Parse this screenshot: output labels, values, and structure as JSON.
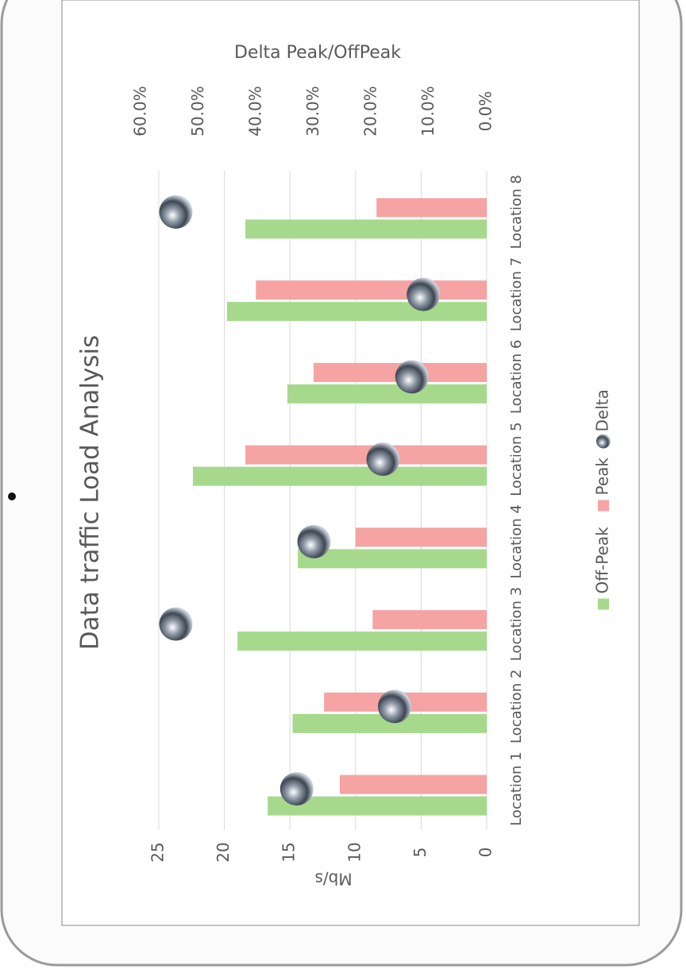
{
  "chart_data": {
    "type": "bar",
    "title": "Data traffic Load Analysis",
    "y_label": "Mb/s",
    "y2_label": "Delta Peak/OffPeak",
    "categories": [
      "Location 1",
      "Location 2",
      "Location 3",
      "Location 4",
      "Location 5",
      "Location 6",
      "Location 7",
      "Location 8"
    ],
    "series": [
      {
        "name": "Off-Peak",
        "color": "#a6d98c",
        "values": [
          16.7,
          14.8,
          19,
          14.4,
          22.4,
          15.2,
          19.8,
          18.4
        ]
      },
      {
        "name": "Peak",
        "color": "#f5a3a3",
        "values": [
          11.2,
          12.4,
          8.7,
          10,
          18.4,
          13.2,
          17.6,
          8.4
        ]
      },
      {
        "name": "Delta",
        "type": "scatter",
        "axis": "y2",
        "color": "#6d7a88",
        "values": [
          33,
          16,
          54,
          30,
          18,
          13,
          11,
          54
        ]
      }
    ],
    "ylim": [
      0,
      25
    ],
    "yticks": [
      0,
      5,
      10,
      15,
      20,
      25
    ],
    "y2lim": [
      0,
      60
    ],
    "y2ticks": [
      {
        "value": 0,
        "label": "0.0%"
      },
      {
        "value": 10,
        "label": "10.0%"
      },
      {
        "value": 20,
        "label": "20.0%"
      },
      {
        "value": 30,
        "label": "30.0%"
      },
      {
        "value": 40,
        "label": "40.0%"
      },
      {
        "value": 50,
        "label": "50.0%"
      },
      {
        "value": 60,
        "label": "60.0%"
      }
    ],
    "grid": true,
    "legend": "bottom"
  }
}
